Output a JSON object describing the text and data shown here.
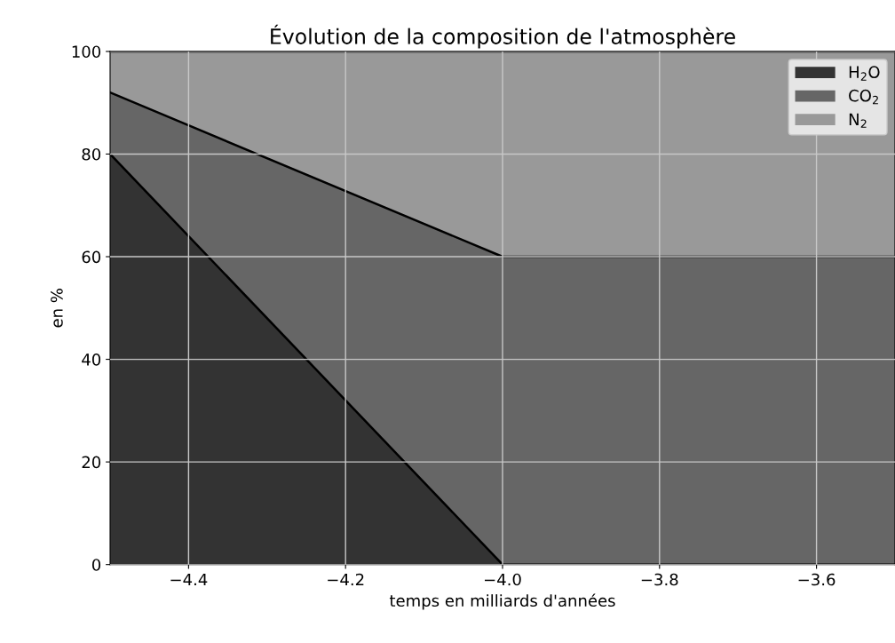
{
  "chart_data": {
    "type": "area",
    "stacked": true,
    "title": "Évolution de la composition de l'atmosphère",
    "xlabel": "temps en milliards d'années",
    "ylabel": "en %",
    "x": [
      -4.5,
      -4.0,
      -3.5
    ],
    "series": [
      {
        "name": "H$_{2}$O",
        "color": "#333333",
        "values": [
          80,
          0,
          0
        ]
      },
      {
        "name": "CO$_{2}$",
        "color": "#666666",
        "values": [
          12,
          60,
          60
        ]
      },
      {
        "name": "N$_{2}$",
        "color": "#999999",
        "values": [
          8,
          40,
          40
        ]
      }
    ],
    "xlim": [
      -4.5,
      -3.5
    ],
    "xticks": [
      {
        "value": -4.4,
        "label": "−4.4"
      },
      {
        "value": -4.2,
        "label": "−4.2"
      },
      {
        "value": -4.0,
        "label": "−4.0"
      },
      {
        "value": -3.8,
        "label": "−3.8"
      },
      {
        "value": -3.6,
        "label": "−3.6"
      }
    ],
    "ylim": [
      0,
      100
    ],
    "yticks": [
      0,
      20,
      40,
      60,
      80,
      100
    ],
    "grid": true,
    "legend": "top right"
  }
}
